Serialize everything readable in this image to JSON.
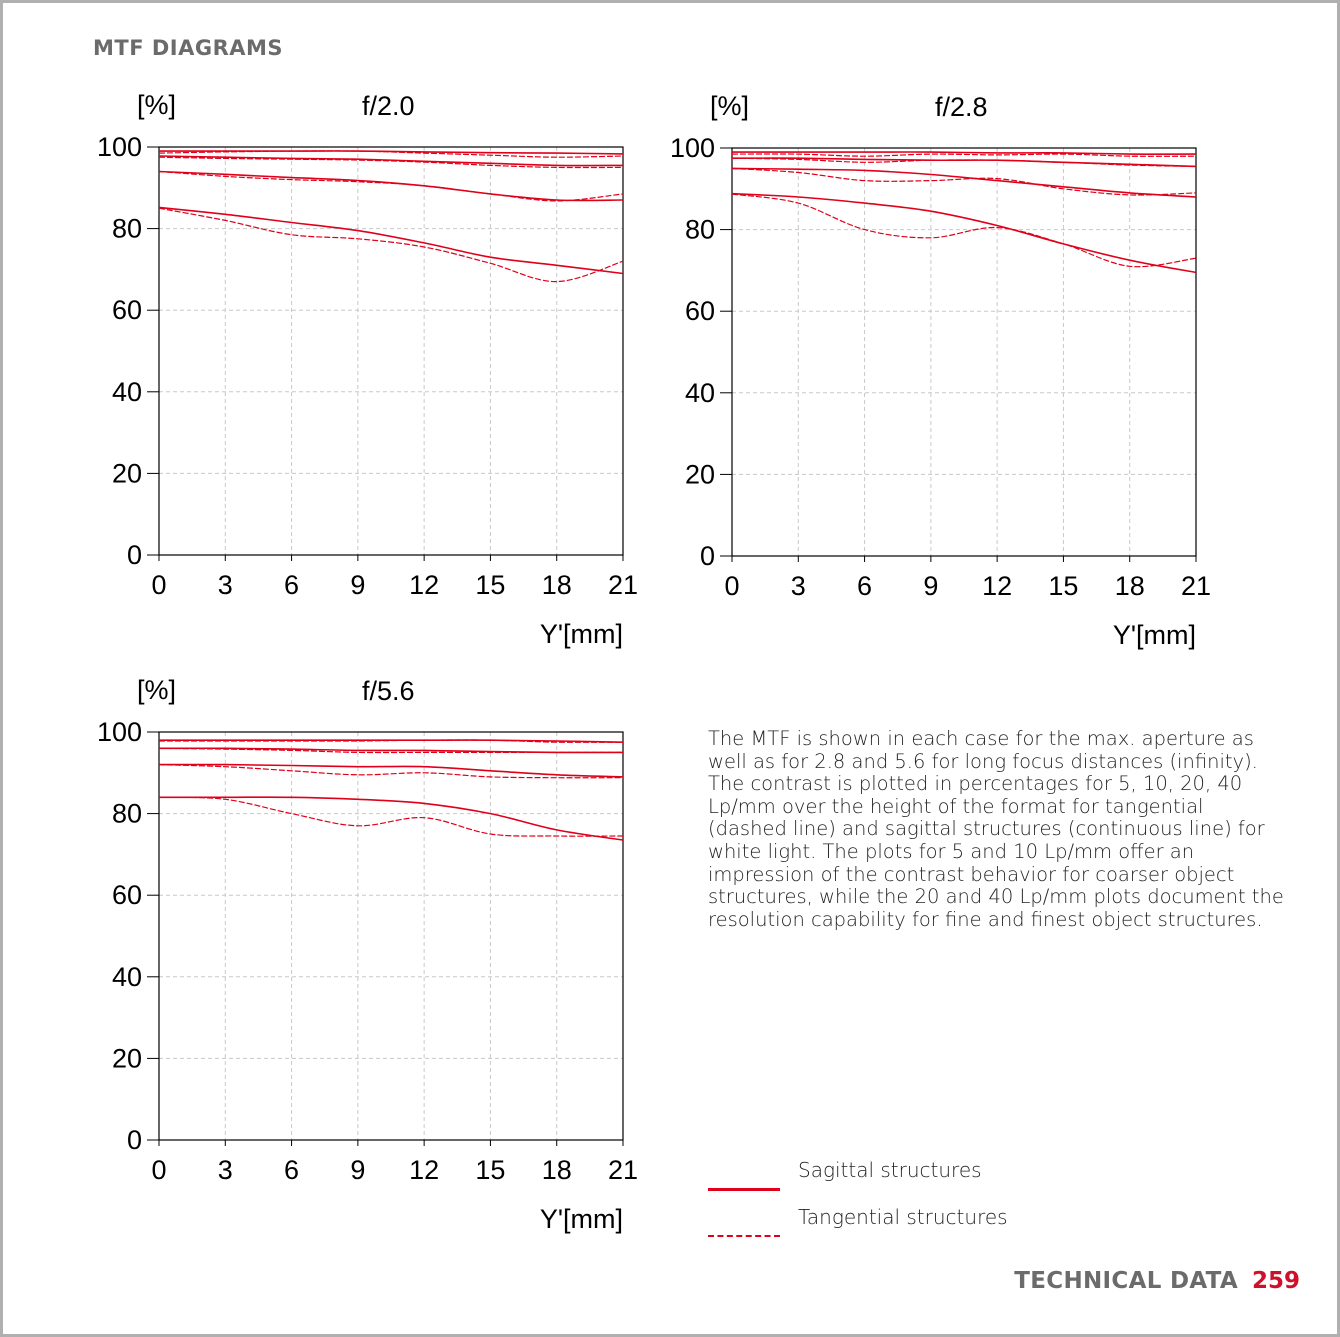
{
  "page": {
    "section_title": "MTF DIAGRAMS",
    "description": "The MTF is shown in each case for the max. aperture as well as for 2.8 and 5.6 for long focus distances (infinity). The contrast is plotted in percentages for 5, 10, 20, 40 Lp/mm over the height of the format for tangential (dashed line) and sagittal structures (continuous line) for white light. The plots for 5 and 10 Lp/mm offer an impression of the contrast behavior for coarser object structures, while the 20 and 40 Lp/mm plots document the resolution capability for fine and finest object structures.",
    "legend": {
      "sagittal_label": "Sagittal structures",
      "tangential_label": "Tangential structures"
    },
    "footer": {
      "title": "TECHNICAL DATA",
      "page_number": "259"
    },
    "colors": {
      "curve": "#e0001a",
      "grid": "#c8c8c8",
      "axis": "#000000",
      "footer_accent": "#d0102a"
    }
  },
  "chart_data": [
    {
      "type": "line",
      "title": "f/2.0",
      "ylabel": "[%]",
      "xlabel": "Y'[mm]",
      "xlim": [
        0,
        21
      ],
      "ylim": [
        0,
        100
      ],
      "xticks": [
        "0",
        "3",
        "6",
        "9",
        "12",
        "15",
        "18",
        "21"
      ],
      "yticks": [
        "0",
        "20",
        "40",
        "60",
        "80",
        "100"
      ],
      "grid": true,
      "series": [
        {
          "style": "solid",
          "x": [
            0,
            3,
            6,
            9,
            12,
            15,
            18,
            21
          ],
          "y": [
            99,
            99,
            99,
            99,
            98.8,
            98.6,
            98.5,
            98.3
          ]
        },
        {
          "style": "dashed",
          "x": [
            0,
            3,
            6,
            9,
            12,
            15,
            18,
            21
          ],
          "y": [
            98.5,
            98.8,
            99,
            99,
            98.5,
            98,
            97.5,
            97.8
          ]
        },
        {
          "style": "solid",
          "x": [
            0,
            3,
            6,
            9,
            12,
            15,
            18,
            21
          ],
          "y": [
            97.8,
            97.5,
            97.2,
            97,
            96.5,
            96,
            95.5,
            95.5
          ]
        },
        {
          "style": "dashed",
          "x": [
            0,
            3,
            6,
            9,
            12,
            15,
            18,
            21
          ],
          "y": [
            97.5,
            97.2,
            97,
            96.8,
            96.3,
            95.5,
            95,
            95
          ]
        },
        {
          "style": "solid",
          "x": [
            0,
            3,
            6,
            9,
            12,
            15,
            18,
            21
          ],
          "y": [
            94,
            93.3,
            92.5,
            91.8,
            90.5,
            88.5,
            87,
            87
          ]
        },
        {
          "style": "dashed",
          "x": [
            0,
            3,
            6,
            9,
            12,
            15,
            18,
            21
          ],
          "y": [
            94,
            92.8,
            92,
            91.5,
            90.5,
            88.5,
            86.8,
            88.5
          ]
        },
        {
          "style": "solid",
          "x": [
            0,
            3,
            6,
            9,
            12,
            15,
            18,
            21
          ],
          "y": [
            85.2,
            83.5,
            81.5,
            79.5,
            76.5,
            73,
            71,
            69
          ]
        },
        {
          "style": "dashed",
          "x": [
            0,
            3,
            6,
            9,
            12,
            15,
            18,
            21
          ],
          "y": [
            85,
            82,
            78.5,
            77.5,
            75.5,
            71.5,
            67,
            72
          ]
        }
      ]
    },
    {
      "type": "line",
      "title": "f/2.8",
      "ylabel": "[%]",
      "xlabel": "Y'[mm]",
      "xlim": [
        0,
        21
      ],
      "ylim": [
        0,
        100
      ],
      "xticks": [
        "0",
        "3",
        "6",
        "9",
        "12",
        "15",
        "18",
        "21"
      ],
      "yticks": [
        "0",
        "20",
        "40",
        "60",
        "80",
        "100"
      ],
      "grid": true,
      "series": [
        {
          "style": "solid",
          "x": [
            0,
            3,
            6,
            9,
            12,
            15,
            18,
            21
          ],
          "y": [
            99,
            99,
            99,
            99,
            98.8,
            98.8,
            98.5,
            98.5
          ]
        },
        {
          "style": "dashed",
          "x": [
            0,
            3,
            6,
            9,
            12,
            15,
            18,
            21
          ],
          "y": [
            98.5,
            98.5,
            98,
            98.5,
            98.3,
            98.5,
            98,
            98
          ]
        },
        {
          "style": "solid",
          "x": [
            0,
            3,
            6,
            9,
            12,
            15,
            18,
            21
          ],
          "y": [
            97.5,
            97.5,
            97.2,
            97,
            97,
            96.5,
            96,
            95.5
          ]
        },
        {
          "style": "dashed",
          "x": [
            0,
            3,
            6,
            9,
            12,
            15,
            18,
            21
          ],
          "y": [
            97.5,
            97.2,
            96.5,
            97,
            97,
            96.5,
            95.8,
            95.5
          ]
        },
        {
          "style": "solid",
          "x": [
            0,
            3,
            6,
            9,
            12,
            15,
            18,
            21
          ],
          "y": [
            95,
            94.8,
            94.5,
            93.5,
            92,
            90.5,
            89,
            88
          ]
        },
        {
          "style": "dashed",
          "x": [
            0,
            3,
            6,
            9,
            12,
            15,
            18,
            21
          ],
          "y": [
            95,
            94,
            92,
            92,
            92.5,
            90,
            88.5,
            89
          ]
        },
        {
          "style": "solid",
          "x": [
            0,
            3,
            6,
            9,
            12,
            15,
            18,
            21
          ],
          "y": [
            88.8,
            88,
            86.5,
            84.5,
            81,
            76.5,
            72.5,
            69.5
          ]
        },
        {
          "style": "dashed",
          "x": [
            0,
            3,
            6,
            9,
            12,
            15,
            18,
            21
          ],
          "y": [
            88.7,
            86.5,
            80,
            78,
            80.5,
            76.5,
            71,
            73
          ]
        }
      ]
    },
    {
      "type": "line",
      "title": "f/5.6",
      "ylabel": "[%]",
      "xlabel": "Y'[mm]",
      "xlim": [
        0,
        21
      ],
      "ylim": [
        0,
        100
      ],
      "xticks": [
        "0",
        "3",
        "6",
        "9",
        "12",
        "15",
        "18",
        "21"
      ],
      "yticks": [
        "0",
        "20",
        "40",
        "60",
        "80",
        "100"
      ],
      "grid": true,
      "series": [
        {
          "style": "solid",
          "x": [
            0,
            3,
            6,
            9,
            12,
            15,
            18,
            21
          ],
          "y": [
            98,
            98,
            98,
            98,
            98,
            98,
            97.8,
            97.5
          ]
        },
        {
          "style": "dashed",
          "x": [
            0,
            3,
            6,
            9,
            12,
            15,
            18,
            21
          ],
          "y": [
            97.8,
            97.8,
            97.8,
            97.8,
            98,
            98,
            97.5,
            97.5
          ]
        },
        {
          "style": "solid",
          "x": [
            0,
            3,
            6,
            9,
            12,
            15,
            18,
            21
          ],
          "y": [
            96,
            96,
            95.8,
            95.5,
            95.5,
            95.2,
            95,
            95
          ]
        },
        {
          "style": "dashed",
          "x": [
            0,
            3,
            6,
            9,
            12,
            15,
            18,
            21
          ],
          "y": [
            96,
            95.8,
            95.5,
            95,
            95,
            95,
            95,
            95
          ]
        },
        {
          "style": "solid",
          "x": [
            0,
            3,
            6,
            9,
            12,
            15,
            18,
            21
          ],
          "y": [
            92,
            92,
            91.8,
            91.5,
            91.5,
            90.5,
            89.5,
            89
          ]
        },
        {
          "style": "dashed",
          "x": [
            0,
            3,
            6,
            9,
            12,
            15,
            18,
            21
          ],
          "y": [
            92,
            91.5,
            90.5,
            89.5,
            90,
            89,
            88.8,
            88.8
          ]
        },
        {
          "style": "solid",
          "x": [
            0,
            3,
            6,
            9,
            12,
            15,
            18,
            21
          ],
          "y": [
            84,
            84,
            84,
            83.5,
            82.5,
            80,
            76,
            73.5
          ]
        },
        {
          "style": "dashed",
          "x": [
            0,
            3,
            6,
            9,
            12,
            15,
            18,
            21
          ],
          "y": [
            84,
            83.5,
            80,
            77,
            79,
            75,
            74.5,
            74.5
          ]
        }
      ]
    }
  ]
}
